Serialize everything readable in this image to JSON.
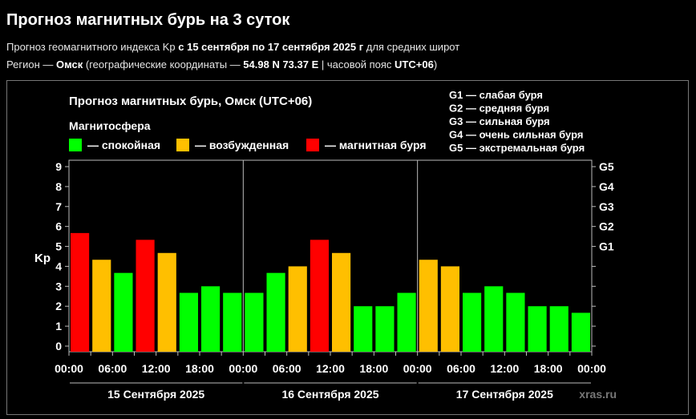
{
  "page": {
    "title": "Прогноз магнитных бурь на 3 суток",
    "subtitle": {
      "prefix": "Прогноз геомагнитного индекса Kp ",
      "range": "с 15 сентября по 17 сентября 2025 г",
      "suffix": " для средних широт"
    },
    "region": {
      "prefix": "Регион — ",
      "city": "Омск",
      "coords_prefix": " (географические координаты — ",
      "coords": "54.98 N 73.37 E",
      "tz_prefix": " | часовой пояс ",
      "tz": "UTC+06",
      "suffix": ")"
    }
  },
  "colors": {
    "calm": "#00ff00",
    "excited": "#ffbf00",
    "storm": "#ff0000",
    "background": "#000000",
    "text": "#ffffff"
  },
  "chart_data": {
    "type": "bar",
    "title": "Прогноз магнитных бурь, Омск (UTC+06)",
    "legend_title": "Магнитосфера",
    "legend": [
      {
        "label": "— спокойная",
        "color": "#00ff00"
      },
      {
        "label": "— возбужденная",
        "color": "#ffbf00"
      },
      {
        "label": "— магнитная буря",
        "color": "#ff0000"
      }
    ],
    "scale_legend": [
      "G1 — слабая буря",
      "G2 — средняя буря",
      "G3 — сильная буря",
      "G4 — очень сильная буря",
      "G5 — экстремальная буря"
    ],
    "ylabel": "Kp",
    "ylim": [
      0,
      9
    ],
    "y_ticks": [
      "0",
      "1",
      "2",
      "3",
      "4",
      "5",
      "6",
      "7",
      "8",
      "9"
    ],
    "right_ticks": [
      {
        "value": 5,
        "label": "G1"
      },
      {
        "value": 6,
        "label": "G2"
      },
      {
        "value": 7,
        "label": "G3"
      },
      {
        "value": 8,
        "label": "G4"
      },
      {
        "value": 9,
        "label": "G5"
      }
    ],
    "x_tick_labels": [
      "00:00",
      "06:00",
      "12:00",
      "18:00",
      "00:00",
      "06:00",
      "12:00",
      "18:00",
      "00:00",
      "06:00",
      "12:00",
      "18:00",
      "00:00"
    ],
    "days": [
      "15 Сентября 2025",
      "16 Сентября 2025",
      "17 Сентября 2025"
    ],
    "values": [
      5.67,
      4.33,
      3.67,
      5.33,
      4.67,
      2.67,
      3.0,
      2.67,
      2.67,
      3.67,
      4.0,
      5.33,
      4.67,
      2.0,
      2.0,
      2.67,
      4.33,
      4.0,
      2.67,
      3.0,
      2.67,
      2.0,
      2.0,
      1.67
    ],
    "status": [
      "storm",
      "excited",
      "calm",
      "storm",
      "excited",
      "calm",
      "calm",
      "calm",
      "calm",
      "calm",
      "excited",
      "storm",
      "excited",
      "calm",
      "calm",
      "calm",
      "excited",
      "excited",
      "calm",
      "calm",
      "calm",
      "calm",
      "calm",
      "calm"
    ],
    "watermark": "xras.ru"
  }
}
